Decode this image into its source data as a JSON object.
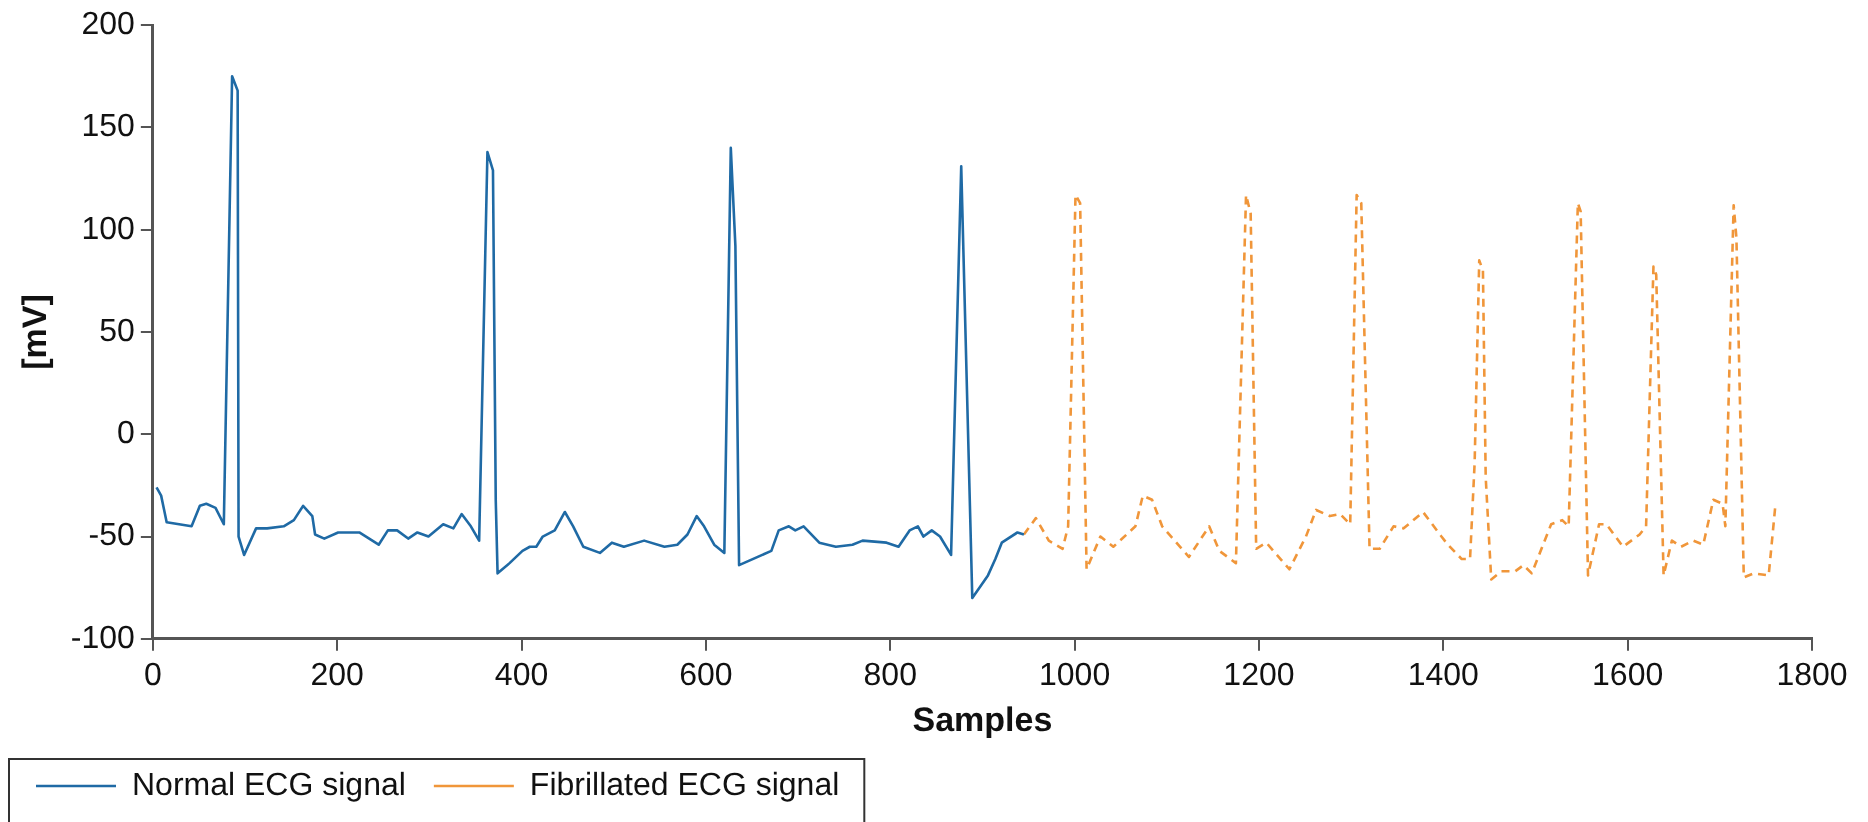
{
  "chart_data": {
    "type": "line",
    "xlabel": "Samples",
    "ylabel": "[mV]",
    "xlim": [
      0,
      1800
    ],
    "xticks": [
      0,
      200,
      400,
      600,
      800,
      1000,
      1200,
      1400,
      1600,
      1800
    ],
    "ylim": [
      -100,
      200
    ],
    "yticks": [
      -100,
      -50,
      0,
      50,
      100,
      150,
      200
    ],
    "grid": false,
    "legend": "bottom left",
    "marker": "none",
    "series": [
      {
        "name": "Normal ECG signal",
        "color": "#1f6aa5",
        "line_style": "solid",
        "x": [
          4,
          9,
          15,
          42,
          51,
          58,
          68,
          77,
          86,
          92,
          93,
          99,
          112,
          124,
          142,
          153,
          163,
          173,
          176,
          186,
          201,
          224,
          245,
          255,
          265,
          277,
          287,
          299,
          315,
          326,
          335,
          345,
          354,
          363,
          369,
          372,
          374,
          387,
          401,
          409,
          416,
          423,
          436,
          447,
          456,
          467,
          485,
          498,
          511,
          533,
          555,
          569,
          580,
          590,
          598,
          609,
          620,
          627,
          632,
          636,
          671,
          679,
          690,
          697,
          706,
          723,
          741,
          759,
          770,
          796,
          809,
          821,
          830,
          836,
          845,
          854,
          866,
          877,
          889,
          906,
          914,
          921,
          938,
          945
        ],
        "values": [
          -26,
          -30,
          -43,
          -45,
          -35,
          -34,
          -36,
          -44,
          175,
          168,
          -50,
          -59,
          -46,
          -46,
          -45,
          -42,
          -35,
          -40,
          -49,
          -51,
          -48,
          -48,
          -54,
          -47,
          -47,
          -51,
          -48,
          -50,
          -44,
          -46,
          -39,
          -45,
          -52,
          138,
          129,
          -32,
          -68,
          -63,
          -57,
          -55,
          -55,
          -50,
          -47,
          -38,
          -45,
          -55,
          -58,
          -53,
          -55,
          -52,
          -55,
          -54,
          -49,
          -40,
          -45,
          -54,
          -58,
          140,
          92,
          -64,
          -57,
          -47,
          -45,
          -47,
          -45,
          -53,
          -55,
          -54,
          -52,
          -53,
          -55,
          -47,
          -45,
          -50,
          -47,
          -50,
          -59,
          131,
          -80,
          -69,
          -61,
          -53,
          -48,
          -49
        ]
      },
      {
        "name": "Fibrillated ECG signal",
        "color": "#f0963a",
        "line_style": "dashed",
        "x": [
          945,
          958,
          972,
          987,
          993,
          1001,
          1006,
          1013,
          1028,
          1042,
          1066,
          1074,
          1084,
          1095,
          1124,
          1146,
          1157,
          1175,
          1186,
          1191,
          1197,
          1208,
          1233,
          1251,
          1262,
          1277,
          1288,
          1299,
          1306,
          1311,
          1320,
          1331,
          1346,
          1357,
          1378,
          1398,
          1405,
          1420,
          1429,
          1434,
          1439,
          1443,
          1446,
          1452,
          1463,
          1478,
          1487,
          1496,
          1517,
          1529,
          1536,
          1546,
          1549,
          1557,
          1569,
          1577,
          1595,
          1613,
          1620,
          1628,
          1631,
          1639,
          1648,
          1658,
          1671,
          1682,
          1693,
          1703,
          1706,
          1715,
          1718,
          1726,
          1737,
          1753,
          1760
        ],
        "values": [
          -49,
          -41,
          -52,
          -56,
          -45,
          117,
          113,
          -66,
          -50,
          -55,
          -45,
          -30,
          -32,
          -45,
          -60,
          -45,
          -57,
          -63,
          117,
          108,
          -56,
          -53,
          -66,
          -50,
          -37,
          -40,
          -39,
          -44,
          117,
          113,
          -56,
          -56,
          -45,
          -46,
          -38,
          -50,
          -54,
          -61,
          -61,
          -14,
          85,
          80,
          -21,
          -71,
          -67,
          -67,
          -64,
          -68,
          -44,
          -42,
          -45,
          113,
          109,
          -69,
          -44,
          -44,
          -55,
          -49,
          -45,
          82,
          78,
          -69,
          -52,
          -55,
          -52,
          -54,
          -32,
          -34,
          -45,
          112,
          96,
          -70,
          -68,
          -69,
          -36
        ]
      }
    ]
  }
}
